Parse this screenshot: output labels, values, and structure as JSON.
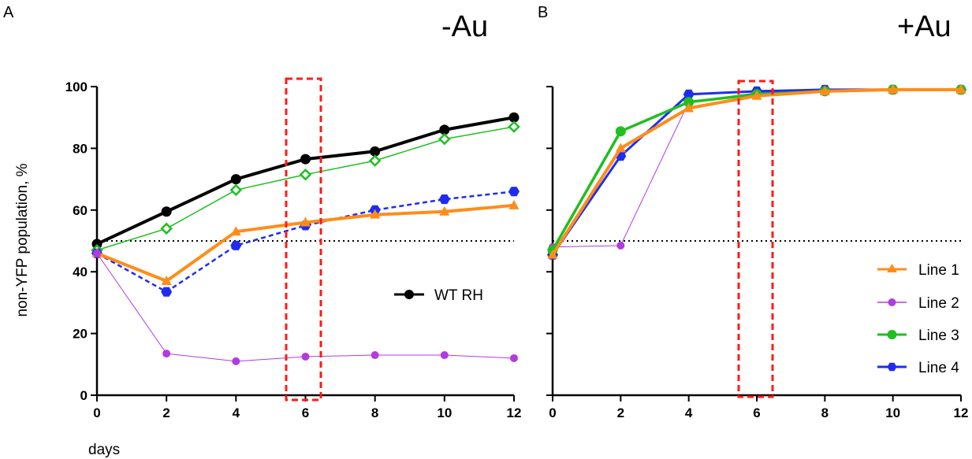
{
  "chart_data": [
    {
      "type": "line",
      "panel_label": "A",
      "title": "-Au",
      "xlabel": "days",
      "ylabel": "non-YFP population, %",
      "xlim": [
        0,
        12
      ],
      "ylim": [
        0,
        100
      ],
      "xticks": [
        0,
        2,
        4,
        6,
        8,
        10,
        12
      ],
      "yticks": [
        0,
        20,
        40,
        60,
        80,
        100
      ],
      "reference_line": {
        "y": 50,
        "style": "dotted"
      },
      "highlight": {
        "x": 6,
        "style": "dashed red box"
      },
      "legend": [
        {
          "name": "WT RH",
          "color": "#000000",
          "marker": "circle"
        }
      ],
      "series": [
        {
          "name": "WT RH",
          "color": "#000000",
          "marker": "circle",
          "dash": "solid",
          "width": 4,
          "x": [
            0,
            2,
            4,
            6,
            8,
            10,
            12
          ],
          "values": [
            49,
            59.5,
            70,
            76.5,
            79,
            86,
            90
          ]
        },
        {
          "name": "Line 3",
          "color": "#1fbf1f",
          "marker": "diamond-open",
          "dash": "solid",
          "width": 1.5,
          "x": [
            0,
            2,
            4,
            6,
            8,
            10,
            12
          ],
          "values": [
            47,
            54,
            66.5,
            71.5,
            76,
            83,
            87
          ]
        },
        {
          "name": "Line 4",
          "color": "#1f2cf0",
          "marker": "hexagon",
          "dash": "dashed",
          "width": 2.5,
          "x": [
            0,
            2,
            4,
            6,
            8,
            10,
            12
          ],
          "values": [
            46,
            33.5,
            48.5,
            55,
            60,
            63.5,
            66
          ]
        },
        {
          "name": "Line 1",
          "color": "#ff8c1a",
          "marker": "triangle",
          "dash": "solid",
          "width": 4,
          "x": [
            0,
            2,
            4,
            6,
            8,
            10,
            12
          ],
          "values": [
            46,
            37,
            53,
            56,
            58.5,
            59.5,
            61.5
          ]
        },
        {
          "name": "Line 2",
          "color": "#b23ae0",
          "marker": "circle",
          "dash": "solid",
          "width": 1,
          "x": [
            0,
            2,
            4,
            6,
            8,
            10,
            12
          ],
          "values": [
            46,
            13.5,
            11,
            12.5,
            13,
            13,
            12
          ]
        }
      ]
    },
    {
      "type": "line",
      "panel_label": "B",
      "title": "+Au",
      "xlabel": "",
      "ylabel": "",
      "xlim": [
        0,
        12
      ],
      "ylim": [
        0,
        100
      ],
      "xticks": [
        0,
        2,
        4,
        6,
        8,
        10,
        12
      ],
      "yticks": [
        0,
        20,
        40,
        60,
        80,
        100
      ],
      "reference_line": {
        "y": 50,
        "style": "dotted"
      },
      "highlight": {
        "x": 6,
        "style": "dashed red box"
      },
      "legend": [
        {
          "name": "Line 1",
          "color": "#ff8c1a",
          "marker": "triangle"
        },
        {
          "name": "Line 2",
          "color": "#b23ae0",
          "marker": "circle"
        },
        {
          "name": "Line 3",
          "color": "#1fbf1f",
          "marker": "circle"
        },
        {
          "name": "Line 4",
          "color": "#1f2cf0",
          "marker": "hexagon"
        }
      ],
      "series": [
        {
          "name": "Line 2",
          "color": "#b23ae0",
          "marker": "circle",
          "dash": "solid",
          "width": 1,
          "x": [
            0,
            2,
            4,
            6,
            8,
            10,
            12
          ],
          "values": [
            48,
            48.5,
            95,
            98,
            99,
            99,
            99
          ]
        },
        {
          "name": "Line 4",
          "color": "#1f2cf0",
          "marker": "hexagon",
          "dash": "solid",
          "width": 3,
          "x": [
            0,
            2,
            4,
            6,
            8,
            10,
            12
          ],
          "values": [
            45.5,
            77.5,
            97.5,
            98.5,
            99,
            99,
            99
          ]
        },
        {
          "name": "Line 3",
          "color": "#1fbf1f",
          "marker": "circle",
          "dash": "solid",
          "width": 3.5,
          "x": [
            0,
            2,
            4,
            6,
            8,
            10,
            12
          ],
          "values": [
            47,
            85.5,
            95,
            97.5,
            98.5,
            99,
            99
          ]
        },
        {
          "name": "Line 1",
          "color": "#ff8c1a",
          "marker": "triangle",
          "dash": "solid",
          "width": 4,
          "x": [
            0,
            2,
            4,
            6,
            8,
            10,
            12
          ],
          "values": [
            45.5,
            80,
            93,
            97,
            98.5,
            99,
            99
          ]
        }
      ]
    }
  ]
}
